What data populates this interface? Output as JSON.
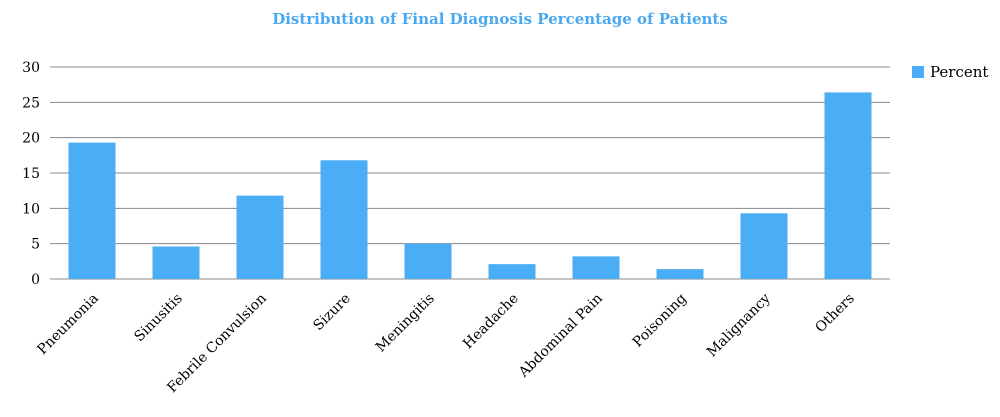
{
  "chart_data": {
    "type": "bar",
    "title": "Distribution of Final Diagnosis Percentage of Patients",
    "xlabel": "",
    "ylabel": "",
    "ylim": [
      0,
      30
    ],
    "yticks": [
      0,
      5,
      10,
      15,
      20,
      25,
      30
    ],
    "grid": true,
    "legend_position": "right",
    "categories": [
      "Pneumonia",
      "Sinusitis",
      "Febrile Convulsion",
      "Sizure",
      "Meningitis",
      "Headache",
      "Abdominal Pain",
      "Poisoning",
      "Malignancy",
      "Others"
    ],
    "series": [
      {
        "name": "Percent",
        "color": "#4badf5",
        "values": [
          19.3,
          4.6,
          11.8,
          16.8,
          5.0,
          2.1,
          3.2,
          1.4,
          9.3,
          26.4
        ]
      }
    ]
  },
  "colors": {
    "title": "#4aa8ee",
    "bar": "#4badf5",
    "grid": "#888888"
  }
}
